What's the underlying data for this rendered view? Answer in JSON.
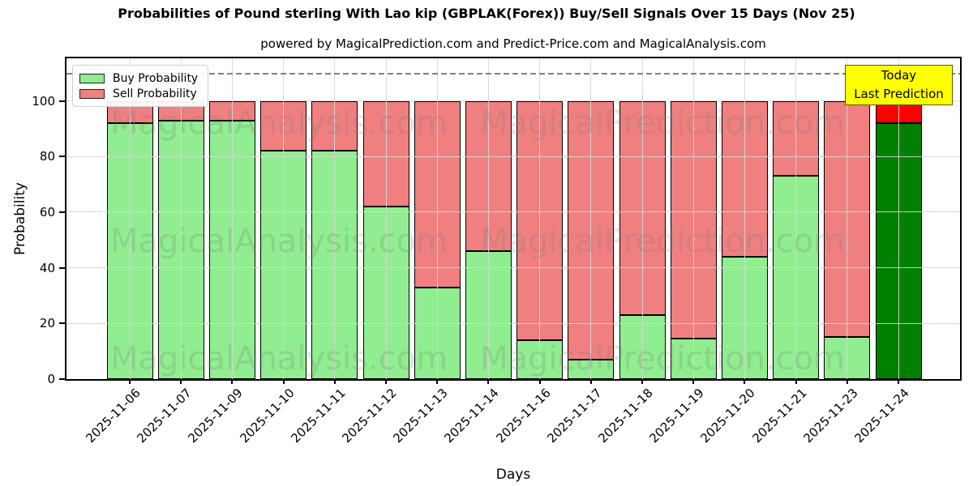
{
  "title": "Probabilities of Pound sterling With Lao kip (GBPLAK(Forex)) Buy/Sell Signals Over 15 Days (Nov 25)",
  "subtitle": "powered by MagicalPrediction.com and Predict-Price.com and MagicalAnalysis.com",
  "legend": {
    "items": [
      {
        "label": "Buy Probability",
        "color": "#90EE90"
      },
      {
        "label": "Sell Probability",
        "color": "#F08080"
      }
    ]
  },
  "annotation": {
    "lines": [
      "Today",
      "Last Prediction"
    ],
    "bg_color": "#FFFF00"
  },
  "watermarks": {
    "left_text": "MagicalAnalysis.com",
    "right_text": "MagicalPrediction.com"
  },
  "chart_data": {
    "type": "bar",
    "stacked": true,
    "title": "Probabilities of Pound sterling With Lao kip (GBPLAK(Forex)) Buy/Sell Signals Over 15 Days (Nov 25)",
    "xlabel": "Days",
    "ylabel": "Probability",
    "categories": [
      "2025-11-06",
      "2025-11-07",
      "2025-11-09",
      "2025-11-10",
      "2025-11-11",
      "2025-11-12",
      "2025-11-13",
      "2025-11-14",
      "2025-11-16",
      "2025-11-17",
      "2025-11-18",
      "2025-11-19",
      "2025-11-20",
      "2025-11-21",
      "2025-11-23",
      "2025-11-24"
    ],
    "series": [
      {
        "name": "Buy Probability",
        "color": "#90EE90",
        "values": [
          92,
          93,
          93,
          82,
          82,
          62,
          33,
          46,
          14,
          7,
          23,
          14.5,
          44,
          73,
          15,
          92
        ]
      },
      {
        "name": "Sell Probability",
        "color": "#F08080",
        "values": [
          8,
          7,
          7,
          18,
          18,
          38,
          67,
          54,
          86,
          93,
          77,
          85.5,
          56,
          27,
          85,
          8
        ]
      }
    ],
    "today_index": 15,
    "today_colors": {
      "buy": "#008000",
      "sell": "#FF0000",
      "edge": "#FFA500"
    },
    "yticks": [
      0,
      20,
      40,
      60,
      80,
      100
    ],
    "ylim": [
      0,
      115.3
    ],
    "dashed_line_y": 110,
    "grid": true,
    "legend_position": "upper left"
  }
}
